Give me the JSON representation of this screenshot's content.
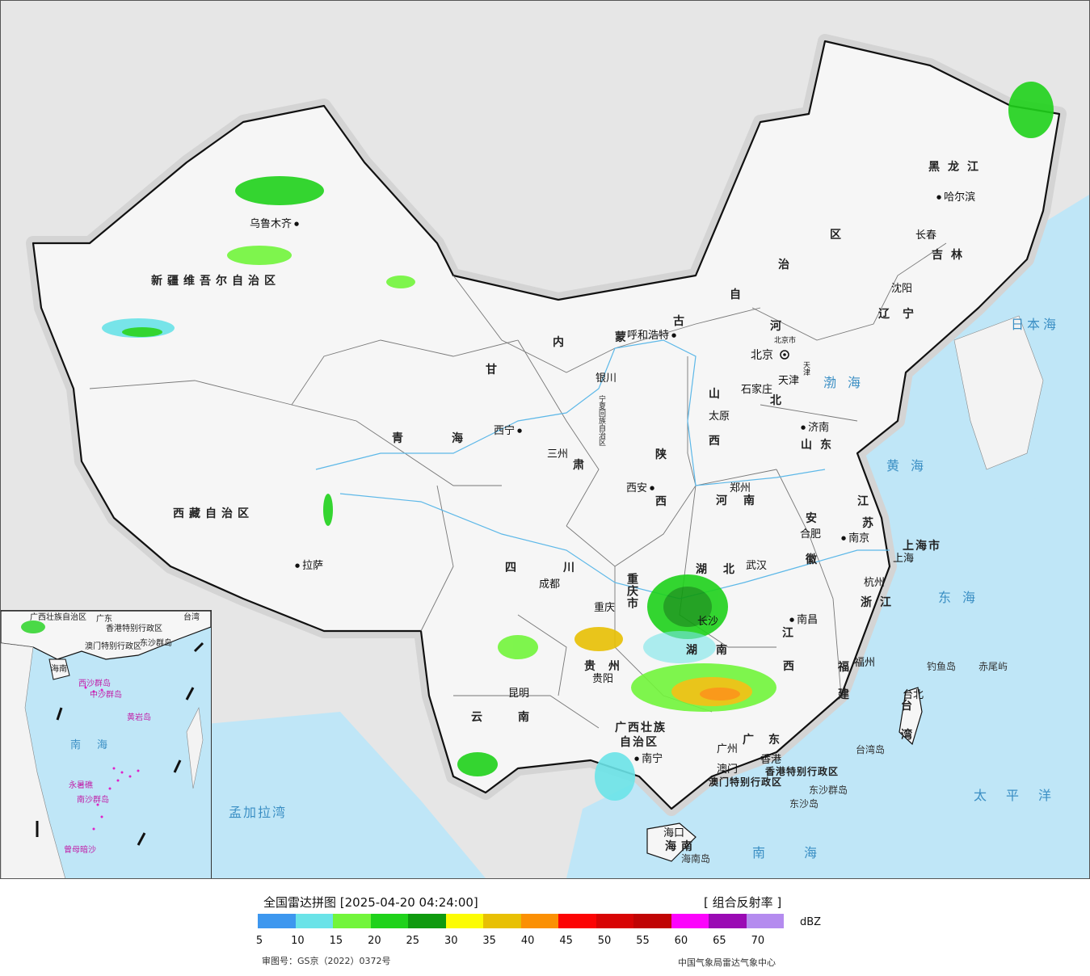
{
  "legend": {
    "title": "全国雷达拼图 [2025-04-20 04:24:00]",
    "product": "[ 组合反射率 ]",
    "unit": "dBZ",
    "ticks": [
      "5",
      "10",
      "15",
      "20",
      "25",
      "30",
      "35",
      "40",
      "45",
      "50",
      "55",
      "60",
      "65",
      "70"
    ],
    "colors": [
      "#3d97ef",
      "#6ae3e8",
      "#72f53b",
      "#1fd21b",
      "#0f9a0f",
      "#fcfc04",
      "#e8c004",
      "#fb9004",
      "#fc0404",
      "#d80404",
      "#c00404",
      "#fc04fc",
      "#9a0ab4",
      "#b48bef"
    ],
    "approval": "审图号：GS京（2022）0372号",
    "center": "中国气象局雷达气象中心"
  },
  "provinces": {
    "xinjiang": "新疆维吾尔自治区",
    "xizang": "西藏自治区",
    "qinghai_a": "青",
    "qinghai_b": "海",
    "gansu": "甘",
    "gansu2": "肃",
    "sichuan_a": "四",
    "sichuan_b": "川",
    "yunnan_a": "云",
    "yunnan_b": "南",
    "neimeng_1": "内",
    "neimeng_2": "蒙",
    "neimeng_3": "古",
    "neimeng_4": "自",
    "neimeng_5": "治",
    "neimeng_6": "区",
    "heilongjiang": "黑龙江",
    "jilin": "吉林",
    "liaoning": "辽宁",
    "hebei_a": "河",
    "hebei_b": "北",
    "shanxi_a": "山",
    "shanxi_b": "西",
    "shaanxi_a": "陕",
    "shaanxi_b": "西",
    "shandong": "山东",
    "henan": "河南",
    "jiangsu_a": "江",
    "jiangsu_b": "苏",
    "anhui_a": "安",
    "anhui_b": "徽",
    "hubei": "湖北",
    "chongqing": "重庆市",
    "shanghai": "上海市",
    "zhejiang": "浙江",
    "jiangxi_a": "江",
    "jiangxi_b": "西",
    "hunan_a": "湖",
    "hunan_b": "南",
    "guizhou": "贵州",
    "fujian_a": "福",
    "fujian_b": "建",
    "guangxi_a": "广西壮族",
    "guangxi_b": "自治区",
    "guangdong": "广东",
    "hainan": "海南",
    "taiwan_a": "台",
    "taiwan_b": "湾",
    "hk": "香港特别行政区",
    "macau": "澳门特别行政区",
    "ningxia": "宁夏回族自治区",
    "tianjin": "天津",
    "beijing_city": "北京市"
  },
  "cities": {
    "urumqi": "乌鲁木齐",
    "lhasa": "拉萨",
    "xining": "西宁",
    "lanzhou": "三州",
    "yinchuan": "银川",
    "hohhot": "呼和浩特",
    "beijing": "北京",
    "tianjin": "天津",
    "shijiazhuang": "石家庄",
    "taiyuan": "太原",
    "jinan": "济南",
    "zhengzhou": "郑州",
    "xian": "西安",
    "chengdu": "成都",
    "chongqing": "重庆",
    "wuhan": "武汉",
    "hefei": "合肥",
    "nanjing": "南京",
    "shanghai": "上海",
    "hangzhou": "杭州",
    "nanchang": "南昌",
    "changsha": "长沙",
    "guiyang": "贵阳",
    "kunming": "昆明",
    "nanning": "南宁",
    "guangzhou": "广州",
    "hongkong": "香港",
    "macau": "澳门",
    "fuzhou": "福州",
    "taibei": "台北",
    "haikou": "海口",
    "harbin": "哈尔滨",
    "changchun": "长春",
    "shenyang": "沈阳"
  },
  "seas": {
    "bohai": "渤海",
    "huanghai": "黄海",
    "donghai": "东海",
    "nanhai": "南海",
    "taipingyang": "太平洋",
    "ribenhai": "日本海",
    "mengjiala": "孟加拉湾"
  },
  "islands": {
    "diaoyu": "钓鱼岛",
    "chiwei": "赤尾屿",
    "taiwan_dao": "台湾岛",
    "dongsha_qundao": "东沙群岛",
    "dongsha_dao": "东沙岛",
    "hainan_dao": "海南岛"
  },
  "inset": {
    "sea": "南海",
    "guangxi": "广西壮族自治区",
    "hk": "香港特别行政区",
    "macau": "澳门特别行政区",
    "dongsha": "东沙群岛",
    "xisha": "西沙群岛",
    "zhongsha": "中沙群岛",
    "huangyan": "黄岩岛",
    "nansha": "南沙群岛",
    "zengmu": "曾母暗沙",
    "yongshu": "永暑礁",
    "hainan": "海南",
    "guangdong": "广东",
    "taiwan": "台湾"
  }
}
